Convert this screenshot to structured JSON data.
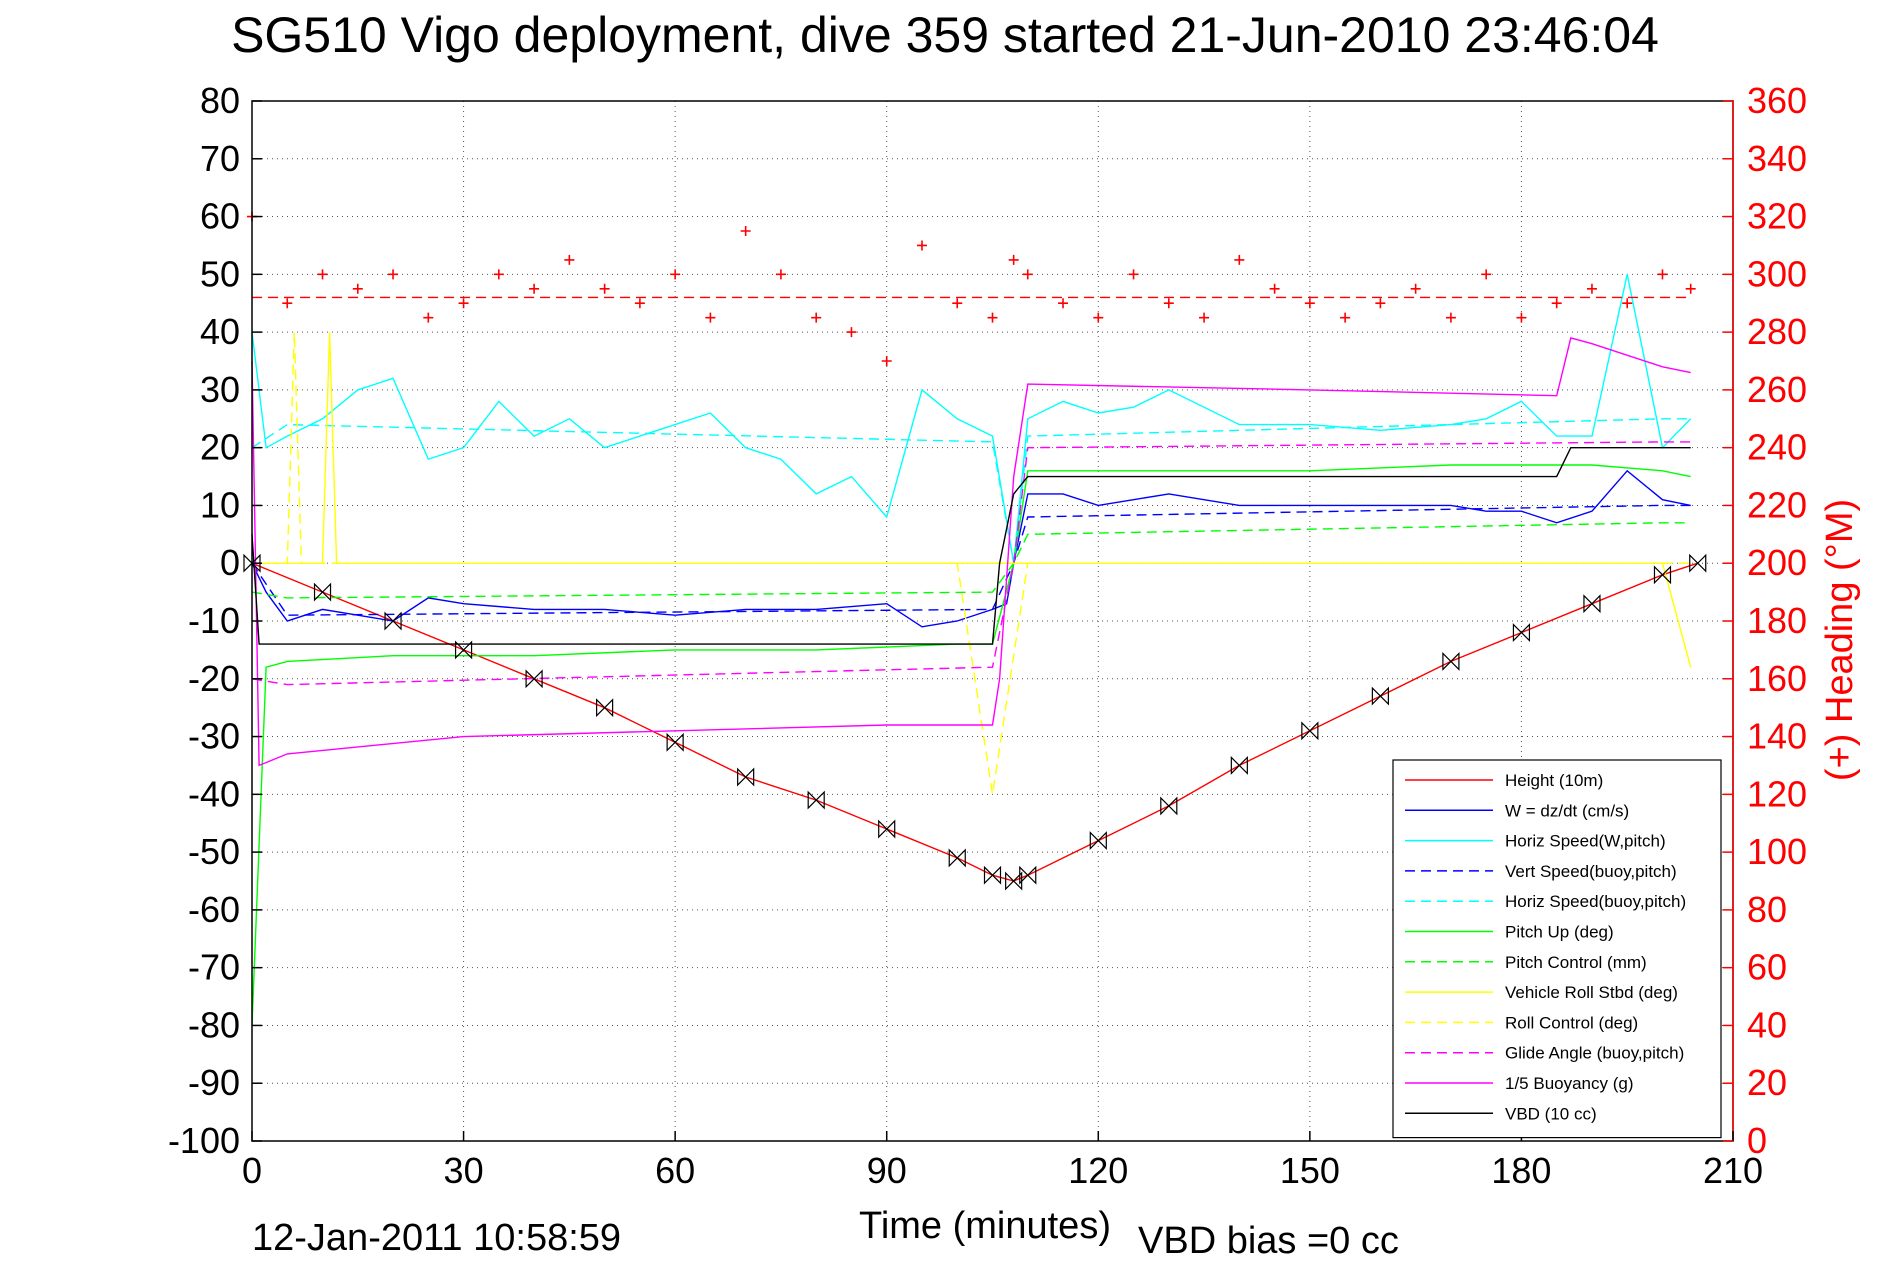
{
  "chart_data": {
    "type": "line",
    "title": "SG510 Vigo deployment, dive 359 started 21-Jun-2010 23:46:04",
    "xlabel": "Time (minutes)",
    "ylabel": "",
    "y2label": "(+) Heading (°M)",
    "xlim": [
      0,
      210
    ],
    "ylim": [
      -100,
      80
    ],
    "y2lim": [
      0,
      360
    ],
    "xticks": [
      "0",
      "30",
      "60",
      "90",
      "120",
      "150",
      "180",
      "210"
    ],
    "yticks": [
      "80",
      "70",
      "60",
      "50",
      "40",
      "30",
      "20",
      "10",
      "0",
      "-10",
      "-20",
      "-30",
      "-40",
      "-50",
      "-60",
      "-70",
      "-80",
      "-90",
      "-100"
    ],
    "y2ticks": [
      "360",
      "340",
      "320",
      "300",
      "280",
      "260",
      "240",
      "220",
      "200",
      "180",
      "160",
      "140",
      "120",
      "100",
      "80",
      "60",
      "40",
      "20",
      "0"
    ],
    "grid": true,
    "legend_position": "bottom-right",
    "footer_left": "12-Jan-2011 10:58:59",
    "footer_right": "VBD bias =0 cc",
    "series": [
      {
        "name": "Height (10m)",
        "color": "#ff0000",
        "style": "solid",
        "x": [
          0,
          10,
          20,
          30,
          40,
          50,
          60,
          70,
          80,
          90,
          100,
          105,
          108,
          110,
          120,
          130,
          140,
          150,
          160,
          170,
          180,
          190,
          200,
          205
        ],
        "y": [
          0,
          -5,
          -10,
          -15,
          -20,
          -25,
          -31,
          -37,
          -41,
          -46,
          -51,
          -54,
          -55,
          -54,
          -48,
          -42,
          -35,
          -29,
          -23,
          -17,
          -12,
          -7,
          -2,
          0
        ]
      },
      {
        "name": "W = dz/dt (cm/s)",
        "color": "#0000ff",
        "style": "solid",
        "x": [
          0,
          2,
          5,
          10,
          15,
          20,
          25,
          30,
          40,
          50,
          60,
          70,
          80,
          90,
          95,
          100,
          105,
          107,
          108,
          110,
          115,
          120,
          125,
          130,
          140,
          150,
          160,
          170,
          175,
          180,
          185,
          190,
          195,
          200,
          204
        ],
        "y": [
          0,
          -5,
          -10,
          -8,
          -9,
          -10,
          -6,
          -7,
          -8,
          -8,
          -9,
          -8,
          -8,
          -7,
          -11,
          -10,
          -8,
          -7,
          0,
          12,
          12,
          10,
          11,
          12,
          10,
          10,
          10,
          10,
          9,
          9,
          7,
          9,
          16,
          11,
          10
        ]
      },
      {
        "name": "Horiz Speed(W,pitch)",
        "color": "#00ffff",
        "style": "solid",
        "x": [
          0,
          2,
          5,
          10,
          15,
          20,
          25,
          30,
          35,
          40,
          45,
          50,
          55,
          60,
          65,
          70,
          75,
          80,
          85,
          90,
          95,
          100,
          105,
          108,
          110,
          115,
          120,
          125,
          130,
          140,
          150,
          160,
          170,
          175,
          180,
          185,
          190,
          195,
          200,
          204
        ],
        "y": [
          40,
          20,
          22,
          25,
          30,
          32,
          18,
          20,
          28,
          22,
          25,
          20,
          22,
          24,
          26,
          20,
          18,
          12,
          15,
          8,
          30,
          25,
          22,
          0,
          25,
          28,
          26,
          27,
          30,
          24,
          24,
          23,
          24,
          25,
          28,
          22,
          22,
          50,
          20,
          25
        ]
      },
      {
        "name": "Vert Speed(buoy,pitch)",
        "color": "#0000ff",
        "style": "dashed",
        "x": [
          0,
          5,
          105,
          108,
          110,
          200,
          204
        ],
        "y": [
          0,
          -9,
          -8,
          0,
          8,
          10,
          10
        ]
      },
      {
        "name": "Horiz Speed(buoy,pitch)",
        "color": "#00ffff",
        "style": "dashed",
        "x": [
          0,
          5,
          105,
          108,
          110,
          200,
          204
        ],
        "y": [
          20,
          24,
          21,
          0,
          22,
          25,
          25
        ]
      },
      {
        "name": "Pitch Up (deg)",
        "color": "#00ff00",
        "style": "solid",
        "x": [
          0,
          2,
          5,
          20,
          40,
          60,
          80,
          100,
          105,
          108,
          110,
          130,
          150,
          170,
          180,
          190,
          200,
          204
        ],
        "y": [
          -80,
          -18,
          -17,
          -16,
          -16,
          -15,
          -15,
          -14,
          -14,
          0,
          16,
          16,
          16,
          17,
          17,
          17,
          16,
          15
        ]
      },
      {
        "name": "Pitch Control (mm)",
        "color": "#00ff00",
        "style": "dashed",
        "x": [
          0,
          5,
          105,
          108,
          110,
          200,
          204
        ],
        "y": [
          -5,
          -6,
          -5,
          0,
          5,
          7,
          7
        ]
      },
      {
        "name": "Vehicle Roll Stbd (deg)",
        "color": "#ffff00",
        "style": "solid",
        "x": [
          0,
          5,
          10,
          11,
          12,
          30,
          60,
          90,
          100,
          105,
          110,
          130,
          150,
          170,
          180,
          190,
          200,
          204
        ],
        "y": [
          0,
          0,
          0,
          40,
          0,
          0,
          0,
          0,
          0,
          0,
          0,
          0,
          0,
          0,
          0,
          0,
          0,
          -18
        ]
      },
      {
        "name": "Roll Control (deg)",
        "color": "#ffff00",
        "style": "dashed",
        "x": [
          0,
          5,
          6,
          7,
          100,
          105,
          110,
          200,
          204
        ],
        "y": [
          0,
          0,
          40,
          0,
          0,
          -40,
          0,
          0,
          0
        ]
      },
      {
        "name": "Glide Angle (buoy,pitch)",
        "color": "#ff00ff",
        "style": "dashed",
        "x": [
          0,
          5,
          105,
          108,
          110,
          200,
          204
        ],
        "y": [
          -20,
          -21,
          -18,
          0,
          20,
          21,
          21
        ]
      },
      {
        "name": "1/5 Buoyancy (g)",
        "color": "#ff00ff",
        "style": "solid",
        "x": [
          0,
          1,
          5,
          30,
          60,
          90,
          105,
          106,
          108,
          110,
          150,
          185,
          187,
          190,
          200,
          204
        ],
        "y": [
          35,
          -35,
          -33,
          -30,
          -29,
          -28,
          -28,
          -20,
          15,
          31,
          30,
          29,
          39,
          38,
          34,
          33
        ]
      },
      {
        "name": "VBD (10 cc)",
        "color": "#000000",
        "style": "solid",
        "x": [
          0,
          1,
          2,
          105,
          106,
          108,
          110,
          185,
          187,
          204
        ],
        "y": [
          5,
          -14,
          -14,
          -14,
          0,
          12,
          15,
          15,
          20,
          20
        ]
      }
    ],
    "heading": {
      "name": "(+) Heading (°M)",
      "color": "#ff0000",
      "axis": "right",
      "x": [
        0,
        5,
        10,
        15,
        20,
        25,
        30,
        35,
        40,
        45,
        50,
        55,
        60,
        65,
        70,
        75,
        80,
        85,
        90,
        95,
        100,
        105,
        108,
        110,
        115,
        120,
        125,
        130,
        135,
        140,
        145,
        150,
        155,
        160,
        165,
        170,
        175,
        180,
        185,
        190,
        195,
        200,
        204
      ],
      "y": [
        320,
        290,
        300,
        295,
        300,
        285,
        290,
        300,
        295,
        305,
        295,
        290,
        300,
        285,
        315,
        300,
        285,
        280,
        270,
        310,
        290,
        285,
        305,
        300,
        290,
        285,
        300,
        290,
        285,
        305,
        295,
        290,
        285,
        290,
        295,
        285,
        300,
        285,
        290,
        295,
        290,
        300,
        295
      ],
      "reference_value": 292
    }
  }
}
